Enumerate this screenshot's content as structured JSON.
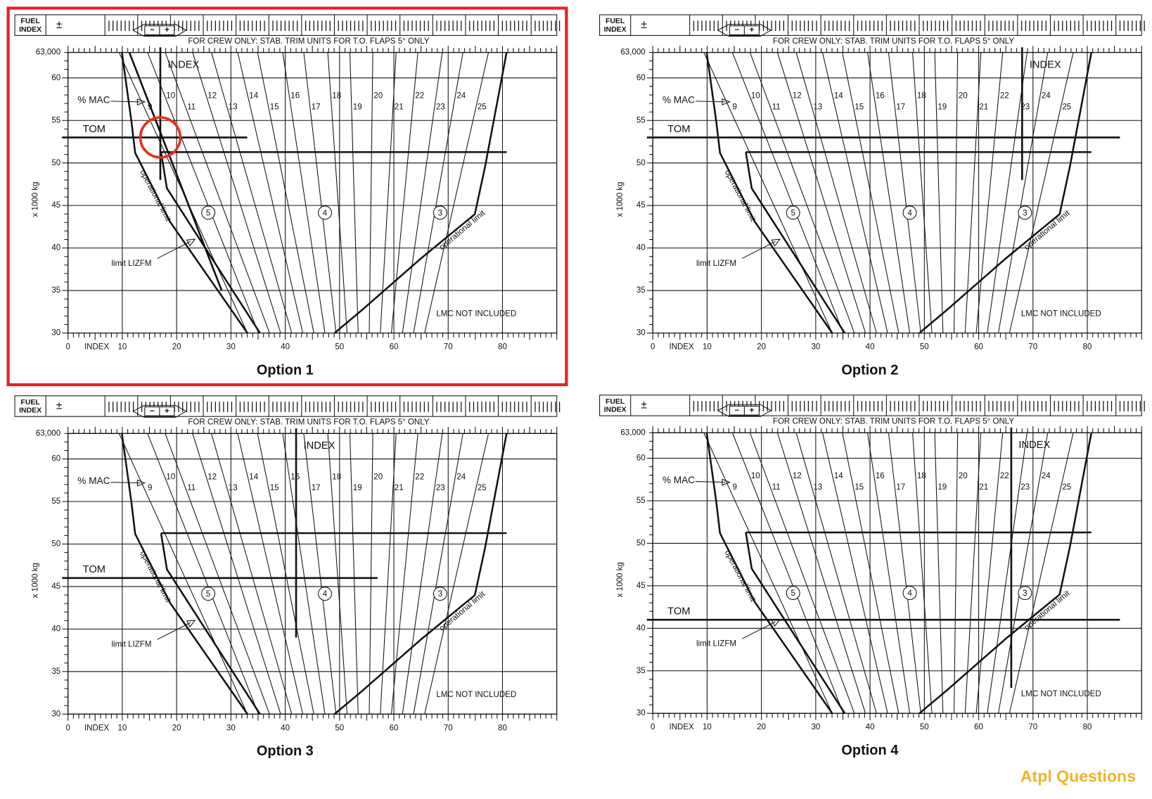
{
  "chart_data": [
    {
      "type": "line",
      "title": "Option 1",
      "selected": true,
      "fuel_index": [
        "FUEL",
        "INDEX"
      ],
      "fuel_sign": "±",
      "trim_signs": [
        "−",
        "+"
      ],
      "crew_note": "FOR CREW ONLY: STAB. TRIM UNITS FOR T.O. FLAPS 5° ONLY",
      "ylabel": "x 1000 kg",
      "xlabel": "INDEX",
      "ylim": [
        30,
        63
      ],
      "yticks": [
        30,
        35,
        40,
        45,
        50,
        55,
        60,
        {
          "value": 63,
          "label": "63,000"
        }
      ],
      "xlim": [
        0,
        90
      ],
      "xticks": [
        0,
        10,
        20,
        30,
        40,
        50,
        60,
        70,
        80
      ],
      "grid": true,
      "mac_label": "% MAC",
      "mac_lines": [
        9,
        10,
        11,
        12,
        13,
        14,
        15,
        16,
        17,
        18,
        19,
        20,
        21,
        22,
        23,
        24,
        25
      ],
      "zones": [
        "5",
        "4",
        "3"
      ],
      "annotations": [
        "operational limit",
        "operational limit",
        "limit LIZFM",
        "LMC NOT INCLUDED"
      ],
      "tom": {
        "label": "TOM",
        "value": 53,
        "to": 33,
        "color": "#e8401c"
      },
      "index": {
        "label": "INDEX",
        "value": 17,
        "from": 48,
        "to": 63,
        "color": "#5ac21c"
      },
      "trend": {
        "color": "#2a1fd0",
        "x": [
          11.3,
          28.3
        ],
        "y": [
          63,
          35
        ]
      },
      "highlight": {
        "x": 17,
        "y": 53,
        "color": "#e8301c"
      }
    },
    {
      "type": "line",
      "title": "Option 2",
      "selected": false,
      "fuel_index": [
        "FUEL",
        "INDEX"
      ],
      "fuel_sign": "±",
      "trim_signs": [
        "−",
        "+"
      ],
      "crew_note": "FOR CREW ONLY: STAB. TRIM UNITS FOR T.O. FLAPS 5° ONLY",
      "ylabel": "x 1000 kg",
      "xlabel": "INDEX",
      "ylim": [
        30,
        63
      ],
      "yticks": [
        30,
        35,
        40,
        45,
        50,
        55,
        60,
        {
          "value": 63,
          "label": "63,000"
        }
      ],
      "xlim": [
        0,
        90
      ],
      "xticks": [
        0,
        10,
        20,
        30,
        40,
        50,
        60,
        70,
        80
      ],
      "grid": true,
      "mac_label": "% MAC",
      "mac_lines": [
        9,
        10,
        11,
        12,
        13,
        14,
        15,
        16,
        17,
        18,
        19,
        20,
        21,
        22,
        23,
        24,
        25
      ],
      "zones": [
        "5",
        "4",
        "3"
      ],
      "annotations": [
        "operational limit",
        "operational limit",
        "limit LIZFM",
        "LMC NOT INCLUDED"
      ],
      "tom": {
        "label": "TOM",
        "value": 53,
        "to": 86,
        "color": "#e8401c"
      },
      "index": {
        "label": "INDEX",
        "value": 68,
        "from": 48,
        "to": 63,
        "color": "#5ac21c"
      }
    },
    {
      "type": "line",
      "title": "Option 3",
      "selected": false,
      "fuel_index": [
        "FUEL",
        "INDEX"
      ],
      "fuel_sign": "±",
      "trim_signs": [
        "−",
        "+"
      ],
      "crew_note": "FOR CREW ONLY: STAB. TRIM UNITS FOR T.O. FLAPS 5° ONLY",
      "ylabel": "x 1000 kg",
      "xlabel": "INDEX",
      "ylim": [
        30,
        63
      ],
      "yticks": [
        30,
        35,
        40,
        45,
        50,
        55,
        60,
        {
          "value": 63,
          "label": "63,000"
        }
      ],
      "xlim": [
        0,
        90
      ],
      "xticks": [
        0,
        10,
        20,
        30,
        40,
        50,
        60,
        70,
        80
      ],
      "grid": true,
      "mac_label": "% MAC",
      "mac_lines": [
        9,
        10,
        11,
        12,
        13,
        14,
        15,
        16,
        17,
        18,
        19,
        20,
        21,
        22,
        23,
        24,
        25
      ],
      "zones": [
        "5",
        "4",
        "3"
      ],
      "annotations": [
        "operational limit",
        "operational limit",
        "limit LIZFM",
        "LMC NOT INCLUDED"
      ],
      "tom": {
        "label": "TOM",
        "value": 46,
        "to": 57,
        "color": "#e8401c"
      },
      "index": {
        "label": "INDEX",
        "value": 42,
        "from": 39,
        "to": 63,
        "color": "#5ac21c"
      }
    },
    {
      "type": "line",
      "title": "Option 4",
      "selected": false,
      "fuel_index": [
        "FUEL",
        "INDEX"
      ],
      "fuel_sign": "±",
      "trim_signs": [
        "−",
        "+"
      ],
      "crew_note": "FOR CREW ONLY: STAB. TRIM UNITS FOR T.O. FLAPS 5° ONLY",
      "ylabel": "x 1000 kg",
      "xlabel": "INDEX",
      "ylim": [
        30,
        63
      ],
      "yticks": [
        30,
        35,
        40,
        45,
        50,
        55,
        60,
        {
          "value": 63,
          "label": "63,000"
        }
      ],
      "xlim": [
        0,
        90
      ],
      "xticks": [
        0,
        10,
        20,
        30,
        40,
        50,
        60,
        70,
        80
      ],
      "grid": true,
      "mac_label": "% MAC",
      "mac_lines": [
        9,
        10,
        11,
        12,
        13,
        14,
        15,
        16,
        17,
        18,
        19,
        20,
        21,
        22,
        23,
        24,
        25
      ],
      "zones": [
        "5",
        "4",
        "3"
      ],
      "annotations": [
        "operational limit",
        "operational limit",
        "limit LIZFM",
        "LMC NOT INCLUDED"
      ],
      "tom": {
        "label": "TOM",
        "value": 41,
        "to": 86,
        "color": "#e8401c"
      },
      "index": {
        "label": "INDEX",
        "value": 66,
        "from": 33,
        "to": 63,
        "color": "#5ac21c"
      }
    }
  ],
  "watermark": "Atpl Questions"
}
